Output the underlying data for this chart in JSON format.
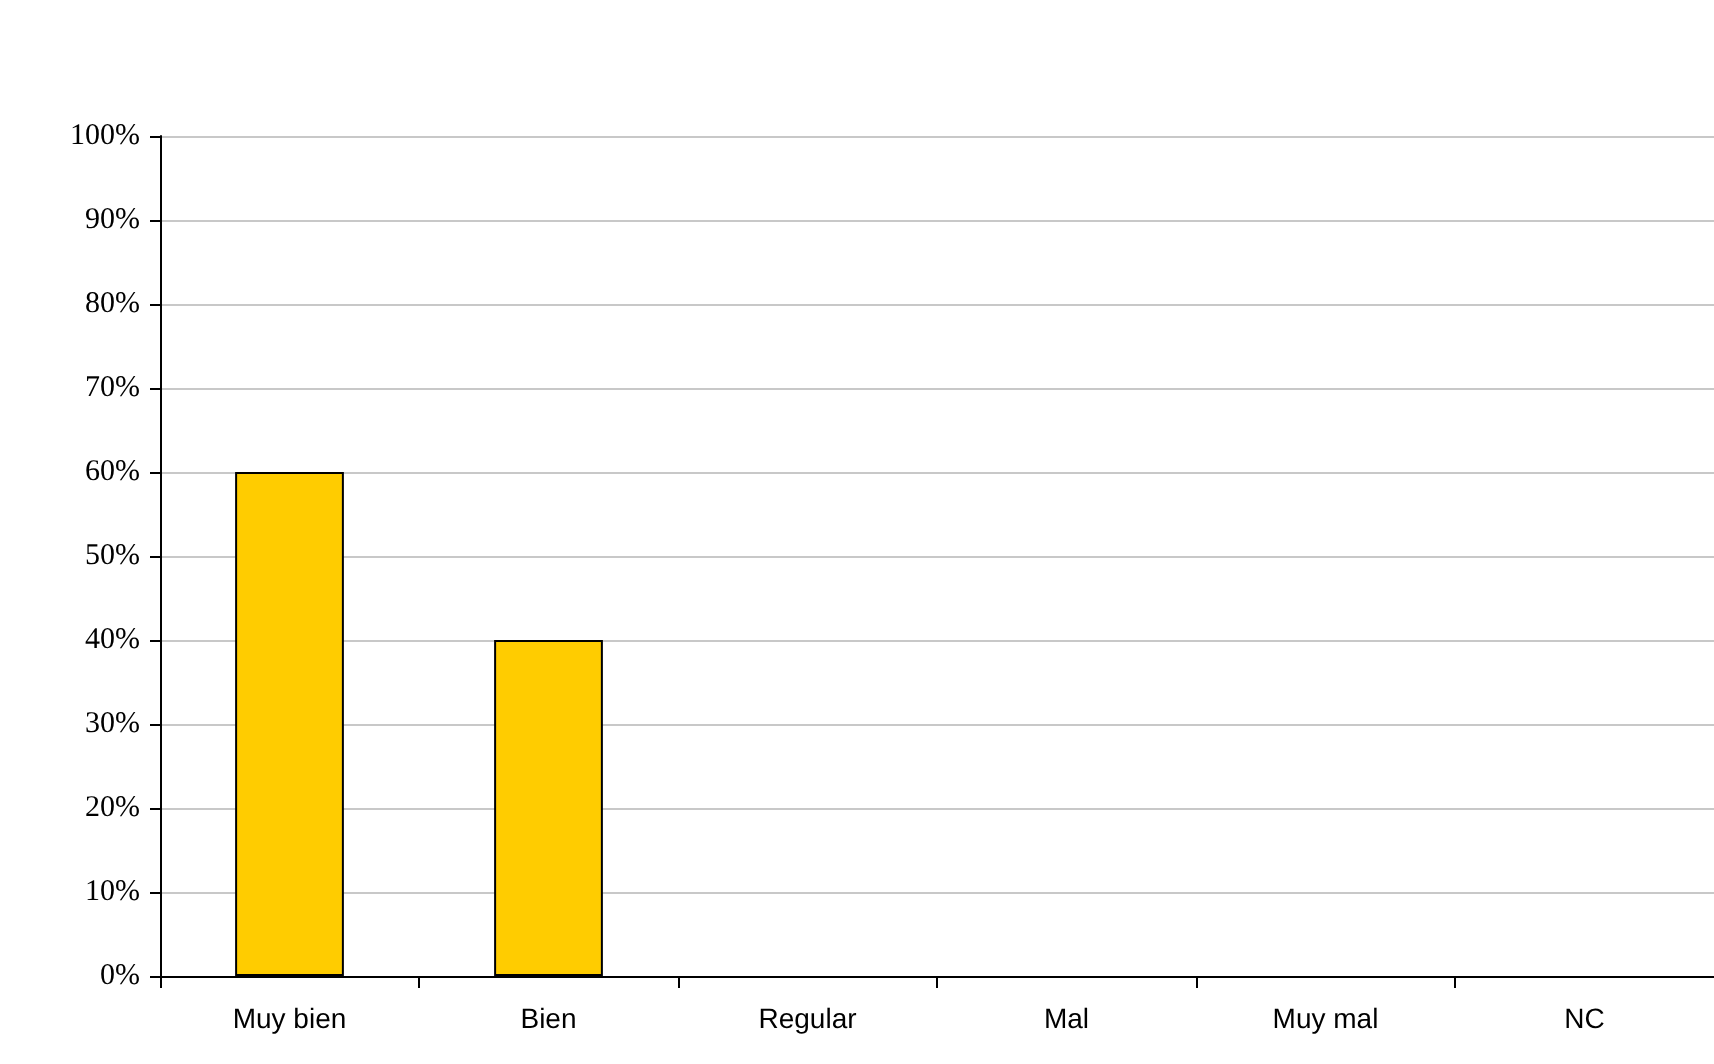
{
  "chart_data": {
    "type": "bar",
    "categories": [
      "Muy bien",
      "Bien",
      "Regular",
      "Mal",
      "Muy mal",
      "NC"
    ],
    "values": [
      60,
      40,
      0,
      0,
      0,
      0
    ],
    "color": "#ffcc00",
    "ylim": [
      0,
      100
    ],
    "yticks": [
      {
        "value": 0,
        "label": "0%"
      },
      {
        "value": 10,
        "label": "10%"
      },
      {
        "value": 20,
        "label": "20%"
      },
      {
        "value": 30,
        "label": "30%"
      },
      {
        "value": 40,
        "label": "40%"
      },
      {
        "value": 50,
        "label": "50%"
      },
      {
        "value": 60,
        "label": "60%"
      },
      {
        "value": 70,
        "label": "70%"
      },
      {
        "value": 80,
        "label": "80%"
      },
      {
        "value": 90,
        "label": "90%"
      },
      {
        "value": 100,
        "label": "100%"
      }
    ],
    "grid": "y"
  }
}
